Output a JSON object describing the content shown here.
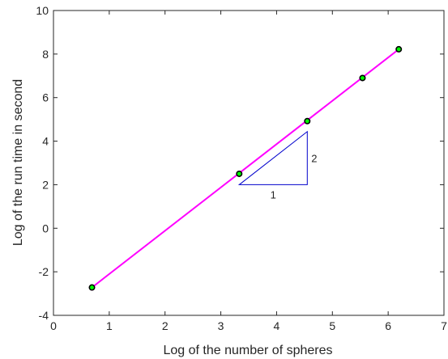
{
  "chart_data": {
    "type": "line",
    "xlabel": "Log of the number of spheres",
    "ylabel": "Log of the run time in second",
    "xlim": [
      0,
      7
    ],
    "ylim": [
      -4,
      10
    ],
    "xticks": [
      0,
      1,
      2,
      3,
      4,
      5,
      6,
      7
    ],
    "yticks": [
      -4,
      -2,
      0,
      2,
      4,
      6,
      8,
      10
    ],
    "grid": false,
    "fit_line": {
      "x": [
        0.69,
        6.19
      ],
      "y": [
        -2.72,
        8.22
      ],
      "color": "#ff00ff"
    },
    "series": [
      {
        "x": [
          0.69,
          3.33,
          4.55,
          5.54,
          6.19
        ],
        "y": [
          -2.72,
          2.5,
          4.92,
          6.9,
          8.22
        ],
        "marker_fill": "#00ff00",
        "marker_edge": "#000000"
      }
    ],
    "slope_triangle": {
      "vertices": [
        [
          3.33,
          2.0
        ],
        [
          4.55,
          2.0
        ],
        [
          4.55,
          4.44
        ]
      ],
      "color": "#0000cc",
      "run_label": "1",
      "rise_label": "2"
    }
  }
}
